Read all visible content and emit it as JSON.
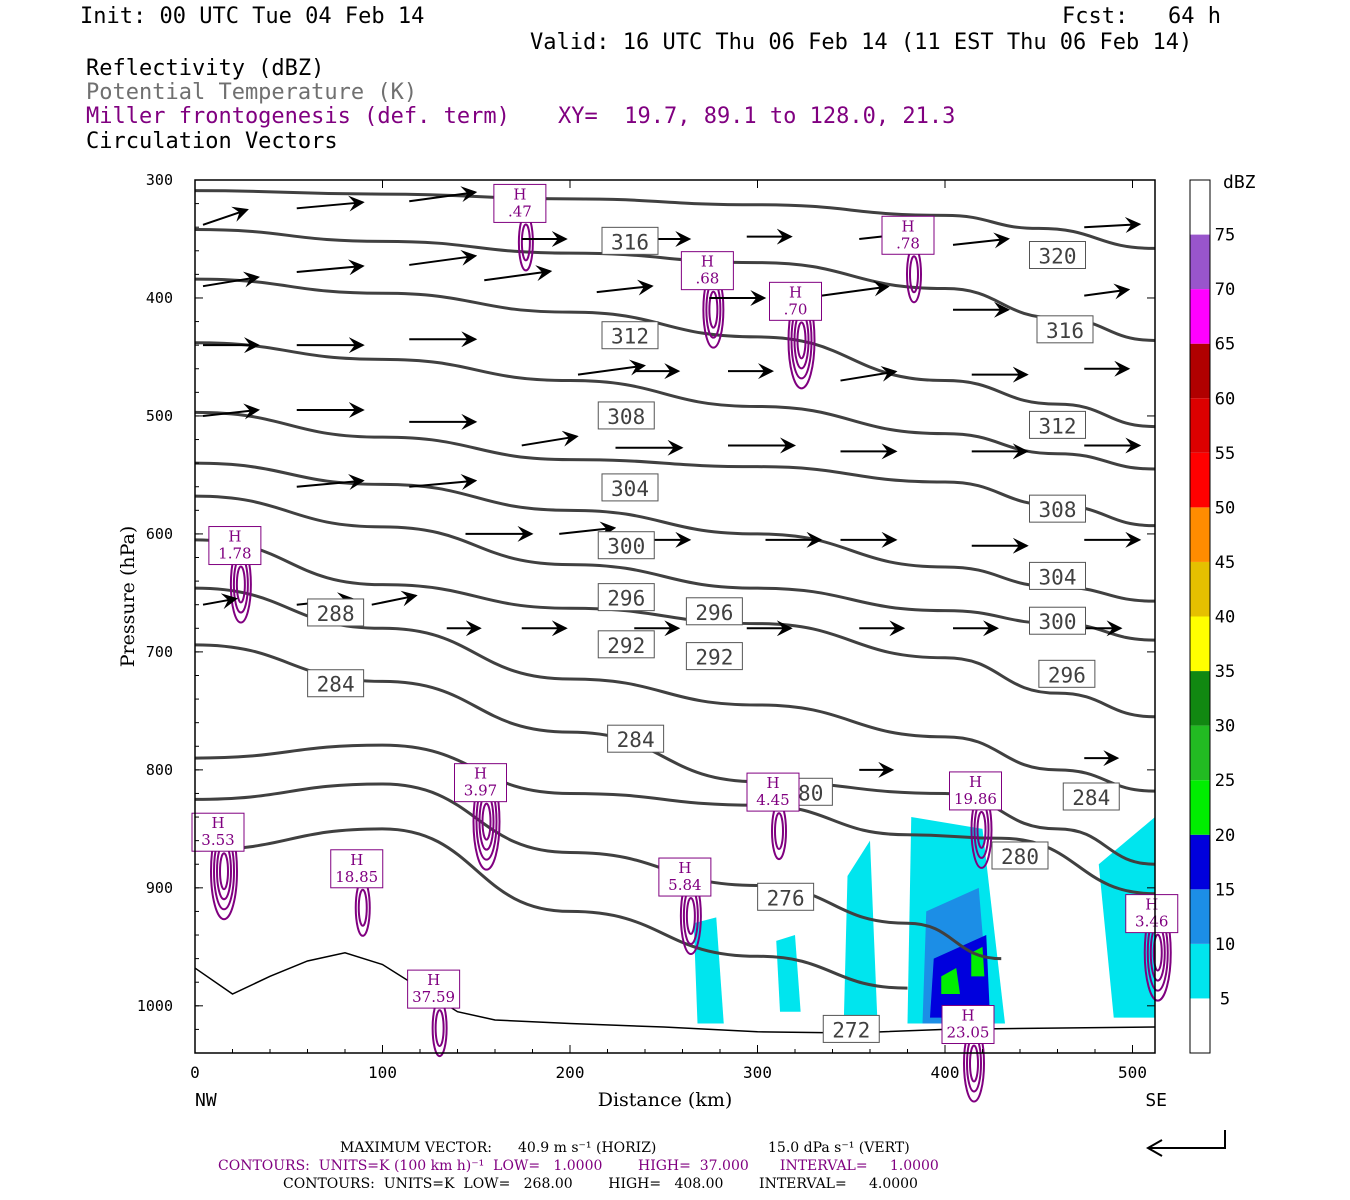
{
  "header": {
    "init": "Init: 00 UTC Tue 04 Feb 14",
    "fcst": "Fcst:   64 h",
    "valid": "Valid: 16 UTC Thu 06 Feb 14 (11 EST Thu 06 Feb 14)"
  },
  "legend_lines": {
    "reflectivity": "Reflectivity (dBZ)",
    "potential_temperature": "Potential Temperature (K)",
    "frontogenesis": "Miller frontogenesis (def. term)",
    "xy": "XY=  19.7, 89.1 to 128.0, 21.3",
    "vectors": "Circulation Vectors"
  },
  "colorbar": {
    "unit": "dBZ",
    "levels": [
      "5",
      "10",
      "15",
      "20",
      "25",
      "30",
      "35",
      "40",
      "45",
      "50",
      "55",
      "60",
      "65",
      "70",
      "75"
    ],
    "colors": [
      "#ffffff",
      "#00e5ee",
      "#1c8ee6",
      "#0000dd",
      "#00ee00",
      "#22bb22",
      "#118811",
      "#ffff00",
      "#e5c000",
      "#ff8c00",
      "#ff0000",
      "#dd0000",
      "#b00000",
      "#ff00ff",
      "#9955cc",
      "#ffffff"
    ]
  },
  "footer": {
    "max_vector_label": "MAXIMUM VECTOR:",
    "max_vector_horiz": "40.9 m s⁻¹ (HORIZ)",
    "max_vector_vert": "15.0 dPa s⁻¹ (VERT)",
    "contours1": "CONTOURS:  UNITS=K (100 km h)⁻¹  LOW=   1.0000        HIGH=  37.000       INTERVAL=     1.0000",
    "contours2": "CONTOURS:  UNITS=K  LOW=   268.00        HIGH=   408.00        INTERVAL=     4.0000"
  },
  "chart_data": {
    "type": "cross-section",
    "xlabel": "Distance (km)",
    "ylabel": "Pressure (hPa)",
    "xlim": [
      0,
      512
    ],
    "ylim": [
      300,
      1040
    ],
    "xticks": [
      0,
      100,
      200,
      300,
      400,
      500
    ],
    "yticks": [
      300,
      400,
      500,
      600,
      700,
      800,
      900,
      1000
    ],
    "x_end_labels": {
      "left": "NW",
      "right": "SE"
    },
    "theta_contours": [
      {
        "value": 320,
        "pts": [
          [
            0,
            309
          ],
          [
            100,
            312
          ],
          [
            200,
            316
          ],
          [
            300,
            321
          ],
          [
            400,
            330
          ],
          [
            450,
            341
          ],
          [
            512,
            358
          ]
        ]
      },
      {
        "value": 316,
        "pts": [
          [
            0,
            342
          ],
          [
            100,
            352
          ],
          [
            200,
            362
          ],
          [
            300,
            370
          ],
          [
            400,
            392
          ],
          [
            460,
            417
          ],
          [
            512,
            436
          ]
        ]
      },
      {
        "value": 312,
        "pts": [
          [
            0,
            384
          ],
          [
            100,
            396
          ],
          [
            200,
            412
          ],
          [
            300,
            433
          ],
          [
            400,
            470
          ],
          [
            460,
            490
          ],
          [
            512,
            509
          ]
        ]
      },
      {
        "value": 308,
        "pts": [
          [
            0,
            438
          ],
          [
            100,
            452
          ],
          [
            200,
            470
          ],
          [
            300,
            492
          ],
          [
            400,
            515
          ],
          [
            460,
            532
          ],
          [
            512,
            545
          ]
        ]
      },
      {
        "value": 304,
        "pts": [
          [
            0,
            497
          ],
          [
            100,
            518
          ],
          [
            200,
            537
          ],
          [
            300,
            543
          ],
          [
            400,
            556
          ],
          [
            460,
            576
          ],
          [
            512,
            593
          ]
        ]
      },
      {
        "value": 300,
        "pts": [
          [
            0,
            540
          ],
          [
            100,
            558
          ],
          [
            200,
            580
          ],
          [
            300,
            600
          ],
          [
            400,
            628
          ],
          [
            460,
            645
          ],
          [
            512,
            657
          ]
        ]
      },
      {
        "value": 296,
        "pts": [
          [
            0,
            568
          ],
          [
            100,
            594
          ],
          [
            200,
            626
          ],
          [
            300,
            646
          ],
          [
            400,
            665
          ],
          [
            460,
            676
          ],
          [
            512,
            690
          ]
        ]
      },
      {
        "value": 292,
        "pts": [
          [
            0,
            605
          ],
          [
            100,
            643
          ],
          [
            200,
            663
          ],
          [
            300,
            676
          ],
          [
            400,
            705
          ],
          [
            460,
            735
          ],
          [
            512,
            755
          ]
        ]
      },
      {
        "value": 288,
        "pts": [
          [
            0,
            646
          ],
          [
            100,
            680
          ],
          [
            200,
            723
          ],
          [
            300,
            745
          ],
          [
            400,
            772
          ],
          [
            460,
            800
          ],
          [
            512,
            818
          ]
        ]
      },
      {
        "value": 284,
        "pts": [
          [
            0,
            694
          ],
          [
            100,
            725
          ],
          [
            200,
            768
          ],
          [
            300,
            810
          ],
          [
            400,
            820
          ],
          [
            460,
            850
          ],
          [
            512,
            880
          ]
        ]
      },
      {
        "value": 280,
        "pts": [
          [
            0,
            790
          ],
          [
            100,
            779
          ],
          [
            200,
            820
          ],
          [
            300,
            830
          ],
          [
            380,
            855
          ],
          [
            430,
            858
          ],
          [
            512,
            905
          ]
        ]
      },
      {
        "value": 276,
        "pts": [
          [
            0,
            825
          ],
          [
            100,
            812
          ],
          [
            200,
            870
          ],
          [
            300,
            898
          ],
          [
            380,
            930
          ],
          [
            430,
            960
          ]
        ]
      },
      {
        "value": 272,
        "pts": [
          [
            0,
            868
          ],
          [
            100,
            850
          ],
          [
            200,
            920
          ],
          [
            300,
            958
          ],
          [
            380,
            985
          ]
        ]
      }
    ],
    "theta_labels": [
      {
        "text": "316",
        "x": 232,
        "p": 352
      },
      {
        "text": "320",
        "x": 460,
        "p": 364
      },
      {
        "text": "312",
        "x": 232,
        "p": 432
      },
      {
        "text": "316",
        "x": 464,
        "p": 427
      },
      {
        "text": "308",
        "x": 230,
        "p": 500
      },
      {
        "text": "312",
        "x": 460,
        "p": 508
      },
      {
        "text": "304",
        "x": 232,
        "p": 561
      },
      {
        "text": "308",
        "x": 460,
        "p": 579
      },
      {
        "text": "300",
        "x": 230,
        "p": 610
      },
      {
        "text": "304",
        "x": 460,
        "p": 636
      },
      {
        "text": "296",
        "x": 230,
        "p": 654
      },
      {
        "text": "296",
        "x": 277,
        "p": 666
      },
      {
        "text": "288",
        "x": 75,
        "p": 667
      },
      {
        "text": "300",
        "x": 460,
        "p": 674
      },
      {
        "text": "292",
        "x": 230,
        "p": 694
      },
      {
        "text": "292",
        "x": 277,
        "p": 704
      },
      {
        "text": "296",
        "x": 465,
        "p": 719
      },
      {
        "text": "284",
        "x": 75,
        "p": 727
      },
      {
        "text": "284",
        "x": 235,
        "p": 774
      },
      {
        "text": "280",
        "x": 325,
        "p": 819
      },
      {
        "text": "284",
        "x": 478,
        "p": 823
      },
      {
        "text": "280",
        "x": 440,
        "p": 873
      },
      {
        "text": "276",
        "x": 315,
        "p": 908
      },
      {
        "text": "272",
        "x": 350,
        "p": 1020
      }
    ],
    "frontogenesis_maxima": [
      {
        "text": "H\n.47",
        "x": 169,
        "p": 319
      },
      {
        "text": "H\n.68",
        "x": 269,
        "p": 376
      },
      {
        "text": "H\n.70",
        "x": 316,
        "p": 402
      },
      {
        "text": "H\n.78",
        "x": 376,
        "p": 346
      },
      {
        "text": "H\n1.78",
        "x": 17,
        "p": 609
      },
      {
        "text": "H\n3.97",
        "x": 148,
        "p": 810
      },
      {
        "text": "H\n4.45",
        "x": 304,
        "p": 818
      },
      {
        "text": "H\n19.86",
        "x": 412,
        "p": 817
      },
      {
        "text": "H\n3.53",
        "x": 8,
        "p": 852
      },
      {
        "text": "H\n18.85",
        "x": 82,
        "p": 883
      },
      {
        "text": "H\n5.84",
        "x": 257,
        "p": 890
      },
      {
        "text": "H\n3.46",
        "x": 506,
        "p": 921
      },
      {
        "text": "H\n37.59",
        "x": 123,
        "p": 985
      },
      {
        "text": "H\n23.05",
        "x": 408,
        "p": 1015
      }
    ],
    "reflectivity_cells": [
      {
        "dbz": 5,
        "pts": [
          [
            266,
            930
          ],
          [
            278,
            925
          ],
          [
            282,
            1015
          ],
          [
            268,
            1015
          ]
        ]
      },
      {
        "dbz": 5,
        "pts": [
          [
            310,
            945
          ],
          [
            320,
            940
          ],
          [
            323,
            1005
          ],
          [
            312,
            1005
          ]
        ]
      },
      {
        "dbz": 5,
        "pts": [
          [
            348,
            890
          ],
          [
            360,
            860
          ],
          [
            364,
            1015
          ],
          [
            346,
            1015
          ]
        ]
      },
      {
        "dbz": 5,
        "pts": [
          [
            382,
            840
          ],
          [
            420,
            850
          ],
          [
            432,
            1015
          ],
          [
            380,
            1015
          ]
        ]
      },
      {
        "dbz": 10,
        "pts": [
          [
            390,
            920
          ],
          [
            418,
            900
          ],
          [
            424,
            1015
          ],
          [
            388,
            1015
          ]
        ]
      },
      {
        "dbz": 15,
        "pts": [
          [
            394,
            960
          ],
          [
            422,
            940
          ],
          [
            424,
            1010
          ],
          [
            392,
            1010
          ]
        ]
      },
      {
        "dbz": 20,
        "pts": [
          [
            398,
            975
          ],
          [
            406,
            968
          ],
          [
            408,
            990
          ],
          [
            398,
            990
          ]
        ]
      },
      {
        "dbz": 20,
        "pts": [
          [
            414,
            955
          ],
          [
            420,
            950
          ],
          [
            421,
            975
          ],
          [
            414,
            975
          ]
        ]
      },
      {
        "dbz": 5,
        "pts": [
          [
            482,
            880
          ],
          [
            512,
            840
          ],
          [
            512,
            1010
          ],
          [
            490,
            1010
          ]
        ]
      }
    ],
    "vectors": [
      [
        0,
        338,
        4,
        -5
      ],
      [
        50,
        324,
        6,
        -2
      ],
      [
        110,
        318,
        6,
        -3
      ],
      [
        170,
        350,
        4,
        0
      ],
      [
        230,
        350,
        5,
        0
      ],
      [
        290,
        348,
        4,
        0
      ],
      [
        350,
        350,
        5,
        -2
      ],
      [
        400,
        355,
        5,
        -2
      ],
      [
        470,
        340,
        5,
        -1
      ],
      [
        0,
        390,
        5,
        -3
      ],
      [
        50,
        378,
        6,
        -2
      ],
      [
        110,
        372,
        6,
        -3
      ],
      [
        150,
        385,
        6,
        -3
      ],
      [
        210,
        395,
        5,
        -2
      ],
      [
        270,
        400,
        5,
        0
      ],
      [
        330,
        398,
        6,
        -3
      ],
      [
        400,
        410,
        5,
        0
      ],
      [
        470,
        398,
        4,
        -2
      ],
      [
        0,
        440,
        5,
        0
      ],
      [
        50,
        440,
        6,
        0
      ],
      [
        110,
        435,
        6,
        0
      ],
      [
        200,
        465,
        6,
        -3
      ],
      [
        230,
        462,
        4,
        0
      ],
      [
        280,
        462,
        4,
        0
      ],
      [
        340,
        470,
        5,
        -3
      ],
      [
        410,
        465,
        5,
        0
      ],
      [
        470,
        460,
        4,
        0
      ],
      [
        0,
        500,
        5,
        -2
      ],
      [
        50,
        495,
        6,
        0
      ],
      [
        110,
        505,
        6,
        0
      ],
      [
        170,
        525,
        5,
        -3
      ],
      [
        220,
        527,
        6,
        0
      ],
      [
        280,
        525,
        6,
        0
      ],
      [
        340,
        530,
        5,
        0
      ],
      [
        410,
        530,
        5,
        0
      ],
      [
        470,
        525,
        5,
        0
      ],
      [
        50,
        560,
        6,
        -2
      ],
      [
        110,
        560,
        6,
        -2
      ],
      [
        140,
        600,
        6,
        0
      ],
      [
        190,
        600,
        5,
        -2
      ],
      [
        230,
        605,
        5,
        0
      ],
      [
        300,
        605,
        5,
        0
      ],
      [
        340,
        605,
        5,
        0
      ],
      [
        410,
        610,
        5,
        0
      ],
      [
        470,
        605,
        5,
        0
      ],
      [
        0,
        660,
        3,
        -2
      ],
      [
        50,
        660,
        5,
        -2
      ],
      [
        90,
        660,
        4,
        -3
      ],
      [
        130,
        680,
        3,
        0
      ],
      [
        170,
        680,
        4,
        0
      ],
      [
        230,
        680,
        4,
        0
      ],
      [
        290,
        680,
        4,
        0
      ],
      [
        350,
        680,
        4,
        0
      ],
      [
        400,
        680,
        4,
        0
      ],
      [
        460,
        680,
        5,
        0
      ],
      [
        470,
        790,
        3,
        0
      ],
      [
        350,
        800,
        3,
        0
      ]
    ]
  }
}
